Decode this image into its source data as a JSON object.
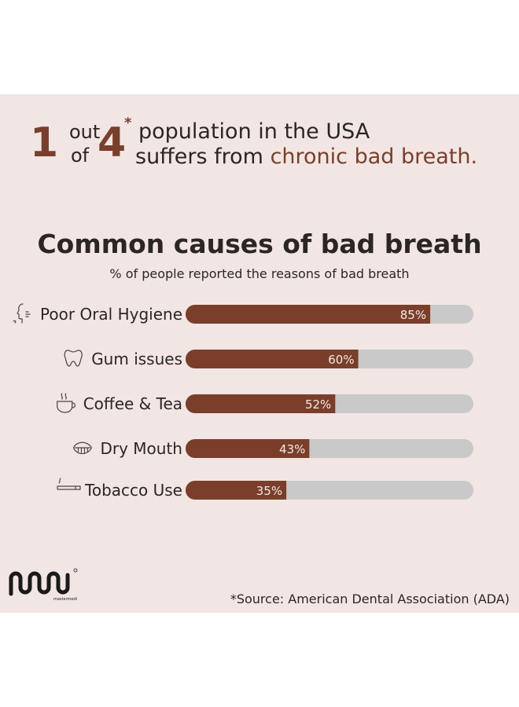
{
  "headline": {
    "num1": "1",
    "word1": "out",
    "word2": "of",
    "num2": "4",
    "star": "*",
    "line1": "population in the USA",
    "line2_pre": "suffers from",
    "line2_accent": "chronic bad breath."
  },
  "chart_data": {
    "type": "bar",
    "orientation": "horizontal",
    "title": "Common causes of bad breath",
    "subtitle": "% of people reported the reasons of bad breath",
    "categories": [
      "Poor Oral Hygiene",
      "Gum issues",
      "Coffee & Tea",
      "Dry Mouth",
      "Tobacco Use"
    ],
    "values": [
      85,
      60,
      52,
      43,
      35
    ],
    "value_labels": [
      "85%",
      "60%",
      "52%",
      "43%",
      "35%"
    ],
    "icons": [
      "breath-face-icon",
      "tooth-icon",
      "coffee-cup-icon",
      "mouth-icon",
      "cigarette-icon"
    ],
    "xlim": [
      0,
      100
    ],
    "grid": false,
    "colors": {
      "bar": "#7a3f2b",
      "track": "#c9c9c9",
      "label": "#f4e8e2"
    }
  },
  "brand": {
    "logo_text": "mastermedi"
  },
  "footer": {
    "source": "*Source: American Dental Association (ADA)"
  }
}
